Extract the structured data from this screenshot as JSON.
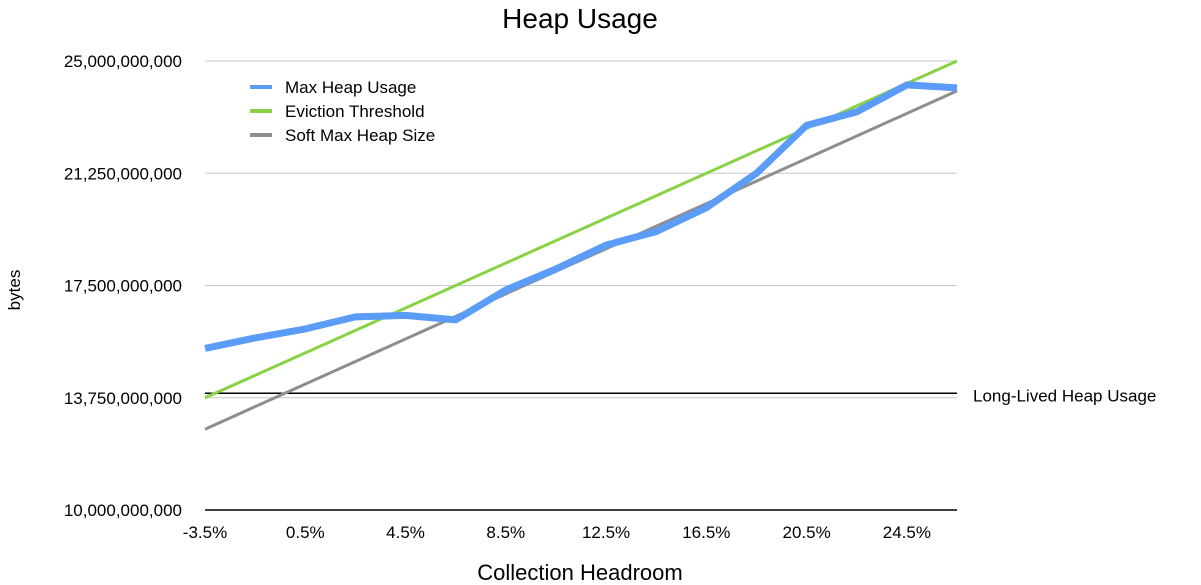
{
  "chart_data": {
    "type": "line",
    "title": "Heap Usage",
    "xlabel": "Collection Headroom",
    "ylabel": "bytes",
    "x_tick_labels": [
      "-3.5%",
      "0.5%",
      "4.5%",
      "8.5%",
      "12.5%",
      "16.5%",
      "20.5%",
      "24.5%"
    ],
    "x_ticks": [
      -3.5,
      0.5,
      4.5,
      8.5,
      12.5,
      16.5,
      20.5,
      24.5
    ],
    "xlim": [
      -3.5,
      26.5
    ],
    "y_tick_labels": [
      "10,000,000,000",
      "13,750,000,000",
      "17,500,000,000",
      "21,250,000,000",
      "25,000,000,000"
    ],
    "y_ticks": [
      10000000000,
      13750000000,
      17500000000,
      21250000000,
      25000000000
    ],
    "ylim": [
      10000000000,
      25000000000
    ],
    "grid": true,
    "legend_position": "top-left",
    "series": [
      {
        "name": "Max Heap Usage",
        "color": "#5a9cf7",
        "x": [
          -3.5,
          -1.5,
          0.5,
          2.5,
          4.5,
          6.5,
          8.5,
          10.5,
          12.5,
          14.5,
          16.5,
          18.5,
          20.5,
          22.5,
          24.5,
          26.5
        ],
        "values": [
          15400000000,
          15750000000,
          16050000000,
          16450000000,
          16500000000,
          16350000000,
          17350000000,
          18050000000,
          18850000000,
          19300000000,
          20100000000,
          21250000000,
          22850000000,
          23300000000,
          24200000000,
          24100000000
        ]
      },
      {
        "name": "Eviction Threshold",
        "color": "#88d344",
        "x": [
          -3.5,
          26.5
        ],
        "values": [
          13750000000,
          25000000000
        ]
      },
      {
        "name": "Soft Max Heap Size",
        "color": "#8e8e8e",
        "x": [
          -3.5,
          26.5
        ],
        "values": [
          12700000000,
          24000000000
        ]
      }
    ],
    "annotations": [
      {
        "label": "Long-Lived Heap Usage",
        "y": 13900000000,
        "color": "#000000"
      }
    ]
  }
}
